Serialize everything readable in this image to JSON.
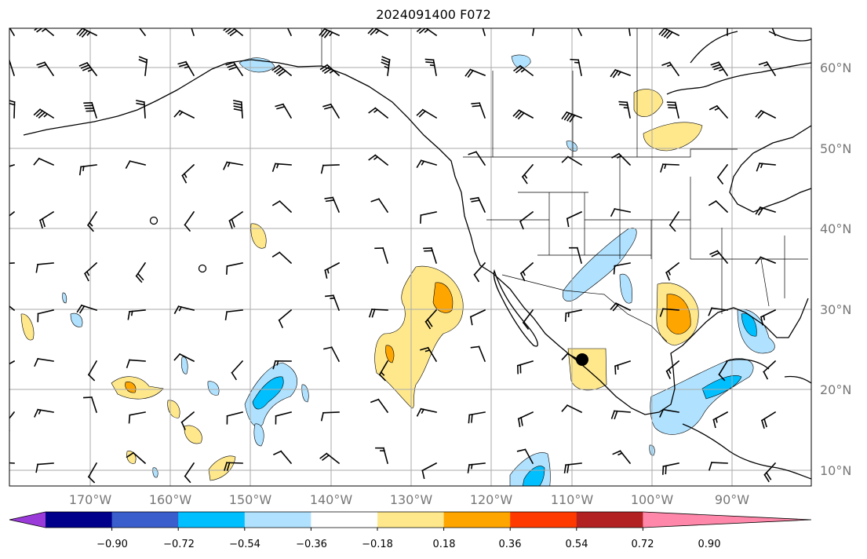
{
  "title": "2024091400 F072",
  "lat_labels": [
    "60°N",
    "50°N",
    "40°N",
    "30°N",
    "20°N",
    "10°N"
  ],
  "lon_labels": [
    "170°W",
    "160°W",
    "150°W",
    "140°W",
    "130°W",
    "120°W",
    "110°W",
    "100°W",
    "90°W"
  ],
  "colorbar": {
    "ticks": [
      "−0.90",
      "−0.72",
      "−0.54",
      "−0.36",
      "−0.18",
      "0.18",
      "0.36",
      "0.54",
      "0.72",
      "0.90"
    ],
    "colors": [
      "#9a3ad8",
      "#00008b",
      "#3a5fcd",
      "#00bfff",
      "#b0e2ff",
      "#ffffff",
      "#ffe88c",
      "#ffa500",
      "#ff3a00",
      "#b22222",
      "#ff88aa"
    ]
  }
}
